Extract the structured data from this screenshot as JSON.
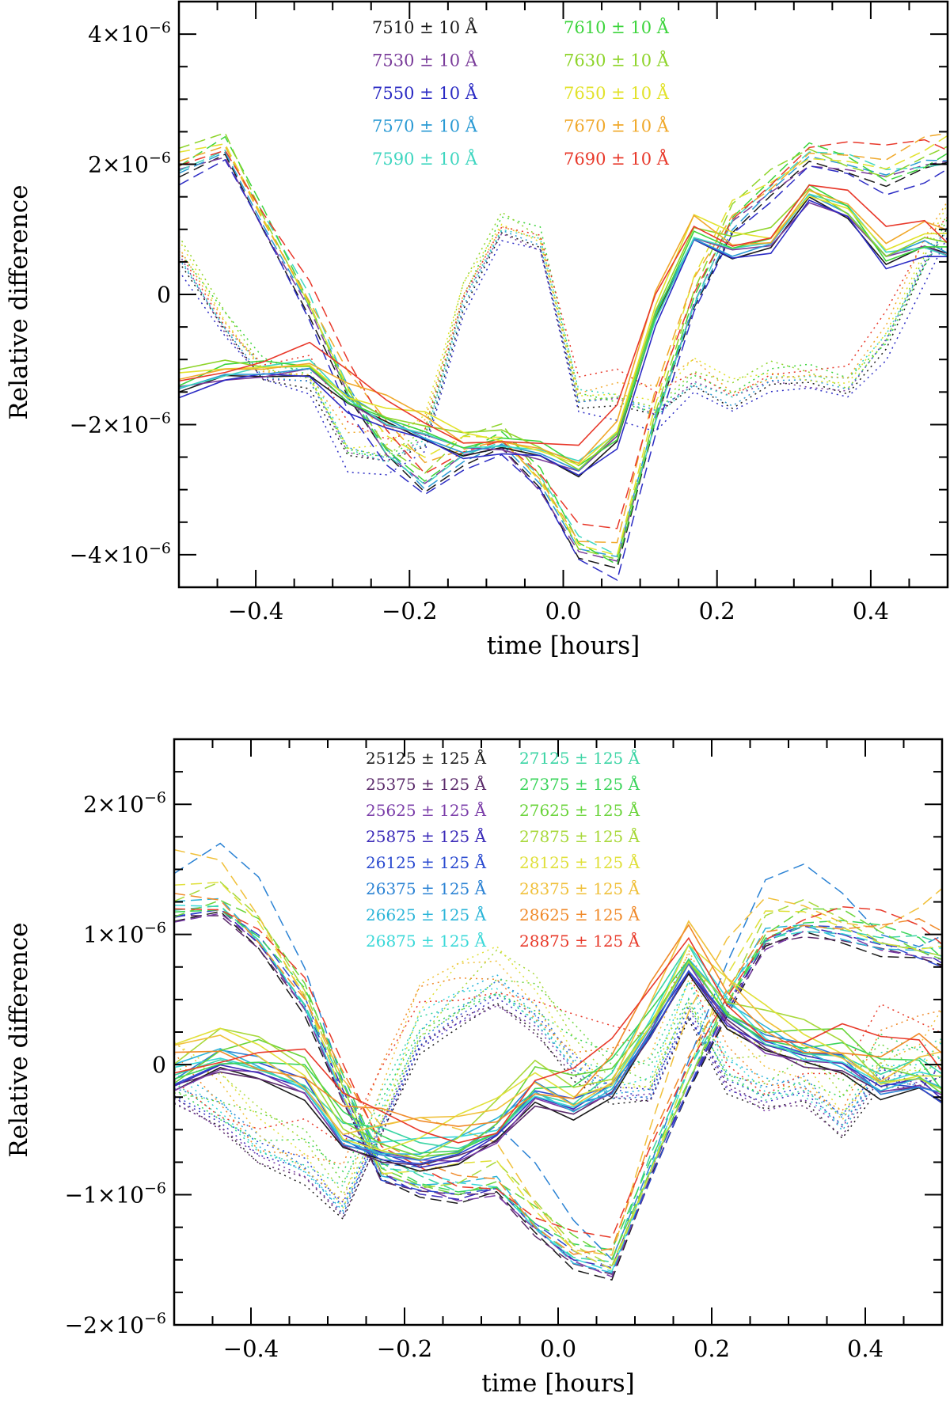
{
  "chart_data": [
    {
      "type": "line",
      "title": "",
      "xlabel": "time [hours]",
      "ylabel": "Relative difference",
      "xlim": [
        -0.5,
        0.5
      ],
      "ylim": [
        -4.5e-06,
        4.5e-06
      ],
      "xticks": [
        -0.4,
        -0.2,
        0.0,
        0.2,
        0.4
      ],
      "xtick_labels": [
        "−0.4",
        "−0.2",
        "0.0",
        "0.2",
        "0.4"
      ],
      "yticks": [
        4e-06,
        2e-06,
        0,
        -2e-06,
        -4e-06
      ],
      "ytick_labels": [
        {
          "base": "4×10",
          "exp": "−6"
        },
        {
          "base": "2×10",
          "exp": "−6"
        },
        {
          "base": "0",
          "exp": ""
        },
        {
          "base": "−2×10",
          "exp": "−6"
        },
        {
          "base": "−4×10",
          "exp": "−6"
        }
      ],
      "legend_columns": 2,
      "legend_placement": "top",
      "x": [
        -0.5,
        -0.44,
        -0.39,
        -0.33,
        -0.28,
        -0.23,
        -0.18,
        -0.13,
        -0.08,
        -0.03,
        0.02,
        0.07,
        0.12,
        0.17,
        0.22,
        0.27,
        0.32,
        0.37,
        0.42,
        0.47,
        0.5
      ],
      "series": [
        {
          "name": "7510",
          "label": "7510  ± 10 Å",
          "color": "#1a1a1a"
        },
        {
          "name": "7530",
          "label": "7530  ± 10 Å",
          "color": "#7a3c9a"
        },
        {
          "name": "7550",
          "label": "7550  ± 10 Å",
          "color": "#2b2bc4"
        },
        {
          "name": "7570",
          "label": "7570  ± 10 Å",
          "color": "#2a9ad4"
        },
        {
          "name": "7590",
          "label": "7590  ± 10 Å",
          "color": "#3fd6c0"
        },
        {
          "name": "7610",
          "label": "7610  ± 10 Å",
          "color": "#3cd43c"
        },
        {
          "name": "7630",
          "label": "7630  ± 10 Å",
          "color": "#8ed42a"
        },
        {
          "name": "7650",
          "label": "7650  ± 10 Å",
          "color": "#e2e22a"
        },
        {
          "name": "7670",
          "label": "7670  ± 10 Å",
          "color": "#f0a82a"
        },
        {
          "name": "7690",
          "label": "7690  ± 10 Å",
          "color": "#e8382a"
        }
      ],
      "profiles": {
        "solid": [
          -1.5e-06,
          -1.3e-06,
          -1.25e-06,
          -1.2e-06,
          -1.7e-06,
          -2e-06,
          -2.2e-06,
          -2.45e-06,
          -2.4e-06,
          -2.5e-06,
          -2.75e-06,
          -2.25e-06,
          -4e-07,
          8.5e-07,
          6e-07,
          7e-07,
          1.45e-06,
          1.2e-06,
          5e-07,
          7e-07,
          6e-07
        ],
        "dashed": [
          1.8e-06,
          2.1e-06,
          1e-06,
          -3e-07,
          -1.6e-06,
          -2.5e-06,
          -3e-06,
          -2.6e-06,
          -2.4e-06,
          -3e-06,
          -4e-06,
          -4.2e-06,
          -2e-06,
          -2e-07,
          1e-06,
          1.5e-06,
          2e-06,
          1.9e-06,
          1.7e-06,
          1.9e-06,
          2e-06
        ],
        "dotted": [
          5e-07,
          -6e-07,
          -1.3e-06,
          -1.4e-06,
          -2.5e-06,
          -2.6e-06,
          -2.3e-06,
          -2e-07,
          9e-07,
          7e-07,
          -1.7e-06,
          -1.7e-06,
          -1.9e-06,
          -1.4e-06,
          -1.7e-06,
          -1.4e-06,
          -1.4e-06,
          -1.5e-06,
          -8e-07,
          4e-07,
          1e-06
        ]
      },
      "offsets": {
        "solid": [
          0.0,
          5e-08,
          -8e-08,
          1e-07,
          1.5e-07,
          2e-07,
          3e-07,
          3.5e-07,
          4e-07,
          5e-07,
          6e-07
        ],
        "dashed": [
          0.0,
          1e-07,
          -1.5e-07,
          1.5e-07,
          2.5e-07,
          3e-07,
          4e-07,
          4.5e-07,
          5e-07,
          5.5e-07,
          2e-07
        ],
        "dotted": [
          0.0,
          1e-07,
          -2e-07,
          1e-07,
          2e-07,
          3e-07,
          3.5e-07,
          4e-07,
          4.5e-07,
          5e-07,
          2e-07
        ]
      }
    },
    {
      "type": "line",
      "title": "",
      "xlabel": "time [hours]",
      "ylabel": "Relative difference",
      "xlim": [
        -0.5,
        0.5
      ],
      "ylim": [
        -2e-06,
        2.5e-06
      ],
      "xticks": [
        -0.4,
        -0.2,
        0.0,
        0.2,
        0.4
      ],
      "xtick_labels": [
        "−0.4",
        "−0.2",
        "0.0",
        "0.2",
        "0.4"
      ],
      "yticks": [
        2e-06,
        1e-06,
        0,
        -1e-06,
        -2e-06
      ],
      "ytick_labels": [
        {
          "base": "2×10",
          "exp": "−6"
        },
        {
          "base": "1×10",
          "exp": "−6"
        },
        {
          "base": "0",
          "exp": ""
        },
        {
          "base": "−1×10",
          "exp": "−6"
        },
        {
          "base": "−2×10",
          "exp": "−6"
        }
      ],
      "legend_columns": 2,
      "legend_placement": "top",
      "x": [
        -0.5,
        -0.44,
        -0.39,
        -0.33,
        -0.28,
        -0.23,
        -0.18,
        -0.13,
        -0.08,
        -0.03,
        0.02,
        0.07,
        0.12,
        0.17,
        0.22,
        0.27,
        0.32,
        0.37,
        0.42,
        0.47,
        0.5
      ],
      "series": [
        {
          "name": "25125",
          "label": "25125  ± 125 Å",
          "color": "#1a1a1a"
        },
        {
          "name": "25375",
          "label": "25375  ± 125 Å",
          "color": "#5a2a6a"
        },
        {
          "name": "25625",
          "label": "25625  ± 125 Å",
          "color": "#7a3ca8"
        },
        {
          "name": "25875",
          "label": "25875  ± 125 Å",
          "color": "#3a2ab8"
        },
        {
          "name": "26125",
          "label": "26125  ± 125 Å",
          "color": "#2a4ad0"
        },
        {
          "name": "26375",
          "label": "26375  ± 125 Å",
          "color": "#2a82d4"
        },
        {
          "name": "26625",
          "label": "26625  ± 125 Å",
          "color": "#2ab4d8"
        },
        {
          "name": "26875",
          "label": "26875  ± 125 Å",
          "color": "#3ad8d8"
        },
        {
          "name": "27125",
          "label": "27125  ± 125 Å",
          "color": "#3ad4a4"
        },
        {
          "name": "27375",
          "label": "27375  ± 125 Å",
          "color": "#3ad45a"
        },
        {
          "name": "27625",
          "label": "27625  ± 125 Å",
          "color": "#6ad43a"
        },
        {
          "name": "27875",
          "label": "27875  ± 125 Å",
          "color": "#a8d83a"
        },
        {
          "name": "28125",
          "label": "28125  ± 125 Å",
          "color": "#e0e03a"
        },
        {
          "name": "28375",
          "label": "28375  ± 125 Å",
          "color": "#f0c03a"
        },
        {
          "name": "28625",
          "label": "28625  ± 125 Å",
          "color": "#f08a2a"
        },
        {
          "name": "28875",
          "label": "28875  ± 125 Å",
          "color": "#e83a2a"
        }
      ],
      "profiles": {
        "solid": [
          -2e-07,
          -5e-08,
          -1e-07,
          -2.5e-07,
          -6.5e-07,
          -7.5e-07,
          -8e-07,
          -7.5e-07,
          -6e-07,
          -3e-07,
          -4e-07,
          -2.5e-07,
          2e-07,
          7e-07,
          3e-07,
          1e-07,
          0.0,
          -5e-08,
          -2.5e-07,
          -2e-07,
          -3e-07
        ],
        "dashed": [
          1.1e-06,
          1.15e-06,
          9e-07,
          4e-07,
          -3e-07,
          -9e-07,
          -1e-06,
          -1.05e-06,
          -1e-06,
          -1.3e-06,
          -1.55e-06,
          -1.65e-06,
          -9e-07,
          -2e-07,
          4e-07,
          9e-07,
          1e-06,
          9.5e-07,
          8.5e-07,
          8e-07,
          7.5e-07
        ],
        "dotted": [
          -3e-07,
          -5e-07,
          -7.5e-07,
          -9e-07,
          -1.2e-06,
          -5.5e-07,
          1e-07,
          3e-07,
          4.5e-07,
          2.5e-07,
          -1e-07,
          -3e-07,
          -3e-07,
          3.5e-07,
          -2e-07,
          -3.5e-07,
          -3e-07,
          -5.5e-07,
          -1.5e-07,
          -2e-07,
          -1e-07
        ]
      },
      "offsets": {
        "solid": [
          0.0,
          3e-08,
          6e-08,
          9e-08,
          1.2e-07,
          1.5e-07,
          1.8e-07,
          2.1e-07,
          2.4e-07,
          2.7e-07,
          3e-07,
          3.3e-07,
          3.6e-07,
          3.9e-07,
          4.2e-07,
          4.5e-07
        ],
        "dashed": [
          0.0,
          3e-08,
          5e-08,
          8e-08,
          1e-07,
          5.5e-07,
          1.3e-07,
          1.5e-07,
          1.8e-07,
          2e-07,
          2.2e-07,
          2.5e-07,
          2.8e-07,
          6e-07,
          3e-07,
          3.2e-07
        ],
        "dotted": [
          0.0,
          4e-08,
          8e-08,
          1.2e-07,
          1.6e-07,
          2e-07,
          2.4e-07,
          2.8e-07,
          3.2e-07,
          3.6e-07,
          4e-07,
          4.4e-07,
          4.8e-07,
          5.2e-07,
          5.6e-07,
          6e-07
        ]
      }
    }
  ]
}
